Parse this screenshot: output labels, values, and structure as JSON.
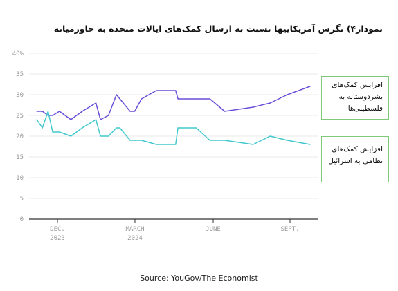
{
  "chart_data": {
    "type": "line",
    "title": "نمودار۴) نگرش آمریکاییها نسبت به ارسال کمک‌های ایالات متحده به خاورمیانه",
    "ylim": [
      0,
      40
    ],
    "yticks": [
      "0",
      "5",
      "10",
      "15",
      "20",
      "25",
      "30",
      "35",
      "40%"
    ],
    "xticks": [
      {
        "line1": "DEC.",
        "line2": "2023"
      },
      {
        "line1": "MARCH",
        "line2": "2024"
      },
      {
        "line1": "JUNE",
        "line2": ""
      },
      {
        "line1": "SEPT.",
        "line2": ""
      }
    ],
    "x": [
      0,
      0.5,
      1.0,
      1.4,
      2.0,
      3.0,
      4.0,
      5.2,
      5.6,
      6.3,
      7.0,
      7.3,
      8.2,
      8.6,
      9.2,
      10.5,
      12.2,
      12.4,
      14.0,
      15.2,
      16.5,
      19.0,
      20.5,
      22.0,
      24.0
    ],
    "series": [
      {
        "name": "افزایش کمک‌های بشردوستانه به فلسطینی‌ها",
        "color": "#6b4fd8",
        "values": [
          26,
          26,
          25,
          25,
          26,
          24,
          26,
          28,
          24,
          25,
          30,
          29,
          26,
          26,
          29,
          31,
          31,
          29,
          29,
          29,
          26,
          27,
          28,
          30,
          32
        ]
      },
      {
        "name": "افزایش کمک‌های نظامی به اسرائیل",
        "color": "#40c8cc",
        "values": [
          24,
          22,
          26,
          21,
          21,
          20,
          22,
          24,
          20,
          20,
          22,
          22,
          19,
          19,
          19,
          18,
          18,
          22,
          22,
          19,
          19,
          18,
          20,
          19,
          18
        ]
      }
    ],
    "legend": [
      {
        "text": "افزایش کمک‌های بشردوستانه به فلسطینی‌ها"
      },
      {
        "text": "افزایش کمک‌های نظامی به اسرائیل"
      }
    ],
    "source": "Source: YouGov/The Economist"
  }
}
